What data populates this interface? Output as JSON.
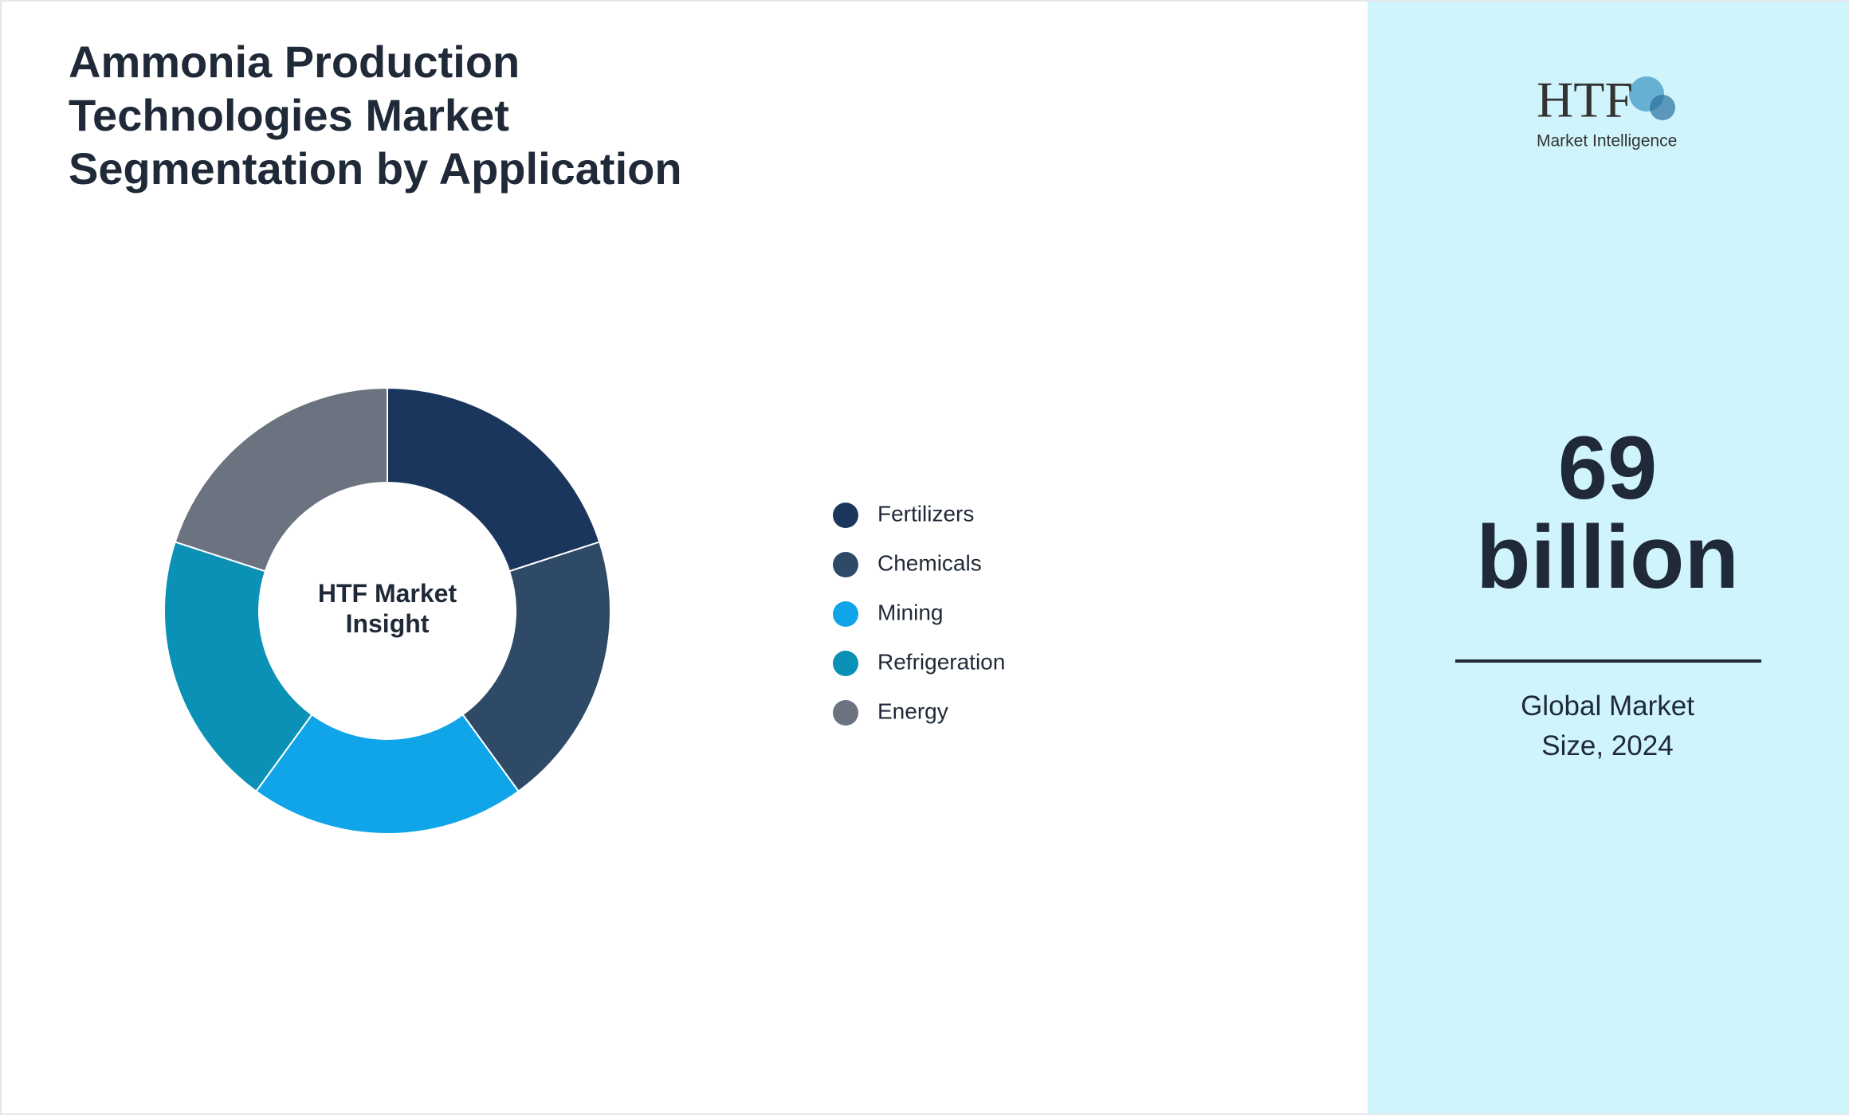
{
  "chart_data": {
    "type": "donut",
    "title": "Ammonia Production Technologies Market Segmentation by Application",
    "center_label": "HTF Market Insight",
    "categories": [
      "Fertilizers",
      "Chemicals",
      "Mining",
      "Refrigeration",
      "Energy"
    ],
    "values": [
      20,
      20,
      20,
      20,
      20
    ],
    "colors": [
      "#1b365d",
      "#2e4a66",
      "#10a5e8",
      "#0a91b5",
      "#6b7280"
    ]
  },
  "market_size": {
    "value": "69 billion",
    "caption": "Global Market Size, 2024"
  },
  "logo": {
    "brand": "HTF",
    "tagline": "Market Intelligence"
  }
}
